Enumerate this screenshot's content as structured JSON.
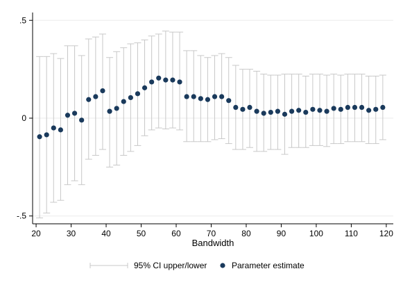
{
  "chart_data": {
    "type": "scatter",
    "title": "",
    "xlabel": "Bandwidth",
    "ylabel": "",
    "xlim": [
      19,
      122
    ],
    "ylim": [
      -0.54,
      0.54
    ],
    "x_ticks": [
      20,
      30,
      40,
      50,
      60,
      70,
      80,
      90,
      100,
      110,
      120
    ],
    "x_tick_labels": [
      "20",
      "30",
      "40",
      "50",
      "60",
      "70",
      "80",
      "90",
      "100",
      "110",
      "120"
    ],
    "y_ticks": [
      -0.5,
      0,
      0.5
    ],
    "y_tick_labels": [
      "-.5",
      "0",
      ".5"
    ],
    "grid": "horizontal",
    "legend_position": "bottom",
    "legend": [
      "95% CI upper/lower",
      "Parameter estimate"
    ],
    "x": [
      21,
      23,
      25,
      27,
      29,
      31,
      33,
      35,
      37,
      39,
      41,
      43,
      45,
      47,
      49,
      51,
      53,
      55,
      57,
      59,
      61,
      63,
      65,
      67,
      69,
      71,
      73,
      75,
      77,
      79,
      81,
      83,
      85,
      87,
      89,
      91,
      93,
      95,
      97,
      99,
      101,
      103,
      105,
      107,
      109,
      111,
      113,
      115,
      117,
      119
    ],
    "series": [
      {
        "name": "Parameter estimate",
        "values": [
          -0.095,
          -0.085,
          -0.05,
          -0.06,
          0.015,
          0.025,
          -0.01,
          0.095,
          0.11,
          0.14,
          0.035,
          0.05,
          0.085,
          0.105,
          0.125,
          0.155,
          0.185,
          0.205,
          0.195,
          0.195,
          0.185,
          0.11,
          0.11,
          0.1,
          0.095,
          0.11,
          0.11,
          0.09,
          0.055,
          0.045,
          0.055,
          0.035,
          0.025,
          0.03,
          0.035,
          0.02,
          0.035,
          0.04,
          0.03,
          0.045,
          0.04,
          0.035,
          0.05,
          0.045,
          0.055,
          0.055,
          0.055,
          0.04,
          0.045,
          0.055
        ]
      },
      {
        "name": "95% CI upper",
        "values": [
          0.315,
          0.315,
          0.33,
          0.305,
          0.37,
          0.37,
          0.32,
          0.405,
          0.415,
          0.43,
          0.31,
          0.34,
          0.36,
          0.38,
          0.385,
          0.4,
          0.42,
          0.43,
          0.445,
          0.44,
          0.44,
          0.345,
          0.345,
          0.32,
          0.31,
          0.32,
          0.33,
          0.31,
          0.27,
          0.25,
          0.25,
          0.24,
          0.225,
          0.22,
          0.22,
          0.225,
          0.225,
          0.225,
          0.215,
          0.225,
          0.225,
          0.22,
          0.225,
          0.22,
          0.225,
          0.225,
          0.225,
          0.215,
          0.215,
          0.22
        ]
      },
      {
        "name": "95% CI lower",
        "values": [
          -0.51,
          -0.485,
          -0.43,
          -0.42,
          -0.34,
          -0.32,
          -0.34,
          -0.21,
          -0.19,
          -0.16,
          -0.25,
          -0.24,
          -0.19,
          -0.17,
          -0.14,
          -0.09,
          -0.06,
          -0.05,
          -0.055,
          -0.05,
          -0.06,
          -0.12,
          -0.12,
          -0.12,
          -0.12,
          -0.11,
          -0.105,
          -0.13,
          -0.16,
          -0.16,
          -0.15,
          -0.17,
          -0.17,
          -0.16,
          -0.16,
          -0.185,
          -0.15,
          -0.15,
          -0.15,
          -0.14,
          -0.14,
          -0.145,
          -0.13,
          -0.13,
          -0.12,
          -0.12,
          -0.12,
          -0.13,
          -0.13,
          -0.11
        ]
      }
    ],
    "colors": {
      "ci": "#c8c8c8",
      "point": "#1a3a5c",
      "grid": "#ebebeb",
      "axis": "#000000"
    }
  }
}
